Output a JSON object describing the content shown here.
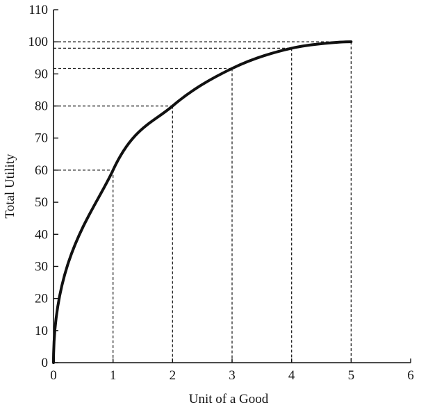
{
  "chart_data": {
    "type": "line",
    "title": "",
    "xlabel": "Unit of a Good",
    "ylabel": "Total Utility",
    "xlim": [
      0,
      6
    ],
    "ylim": [
      0,
      110
    ],
    "x_ticks": [
      "0",
      "1",
      "2",
      "3",
      "4",
      "5",
      "6"
    ],
    "y_ticks": [
      "0",
      "10",
      "20",
      "30",
      "40",
      "50",
      "60",
      "70",
      "80",
      "90",
      "100",
      "110"
    ],
    "grid": false,
    "legend": "none",
    "series": [
      {
        "x": [
          0,
          1,
          2,
          3,
          4,
          5
        ],
        "y": [
          0,
          60,
          80,
          91.7,
          98,
          100
        ]
      }
    ],
    "reference_points": [
      {
        "x": 1,
        "y": 60
      },
      {
        "x": 2,
        "y": 80
      },
      {
        "x": 3,
        "y": 91.7
      },
      {
        "x": 4,
        "y": 98
      },
      {
        "x": 5,
        "y": 100
      }
    ],
    "colors": {
      "line": "#111111",
      "axis": "#111111",
      "guides": "#222222"
    }
  }
}
